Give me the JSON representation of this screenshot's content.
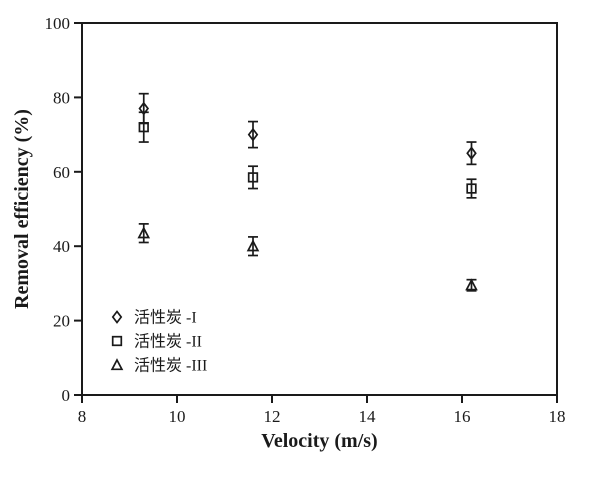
{
  "chart_data": {
    "type": "scatter",
    "title": "",
    "xlabel": "Velocity (m/s)",
    "ylabel": "Removal efficiency (%)",
    "xlim": [
      8,
      18
    ],
    "ylim": [
      0,
      100
    ],
    "xticks": [
      8,
      10,
      12,
      14,
      16,
      18
    ],
    "yticks": [
      0,
      20,
      40,
      60,
      80,
      100
    ],
    "grid": false,
    "legend_position": "inside-lower-left",
    "colors": {
      "foreground": "#1a1a1a",
      "background": "#ffffff"
    },
    "series": [
      {
        "name": "活性炭 -I",
        "marker": "diamond",
        "x": [
          9.3,
          11.6,
          16.2
        ],
        "y": [
          77,
          70,
          65
        ],
        "yerr": [
          4,
          3.5,
          3
        ]
      },
      {
        "name": "活性炭 -II",
        "marker": "square",
        "x": [
          9.3,
          11.6,
          16.2
        ],
        "y": [
          72,
          58.5,
          55.5
        ],
        "yerr": [
          4,
          3,
          2.5
        ]
      },
      {
        "name": "活性炭 -III",
        "marker": "triangle",
        "x": [
          9.3,
          11.6,
          16.2
        ],
        "y": [
          43.5,
          40,
          29.5
        ],
        "yerr": [
          2.5,
          2.5,
          1.5
        ]
      }
    ]
  }
}
